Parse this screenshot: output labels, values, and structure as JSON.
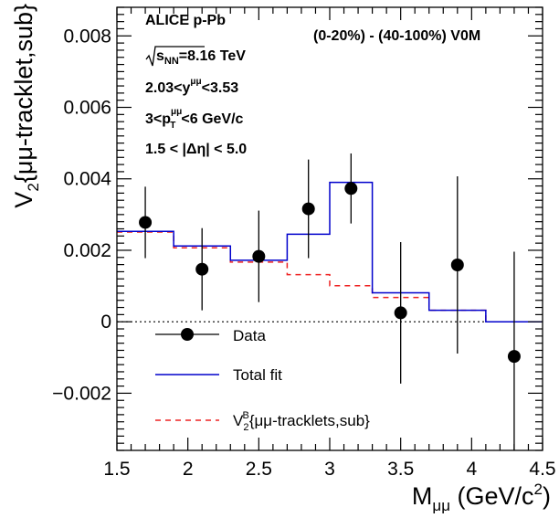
{
  "chart_data": {
    "type": "line",
    "xlabel": "M",
    "xlabel_sub": "μμ",
    "xlabel_unit": " (GeV/c",
    "xlabel_unit_sup": "2",
    "xlabel_unit_end": ")",
    "ylabel": "V",
    "ylabel_sub": "2",
    "ylabel_rest": "{μμ-tracklet,sub}",
    "xlim": [
      1.5,
      4.5
    ],
    "ylim": [
      -0.0036,
      0.0088
    ],
    "x_ticks": [
      1.5,
      2,
      2.5,
      3,
      3.5,
      4,
      4.5
    ],
    "x_tick_labels": [
      "1.5",
      "2",
      "2.5",
      "3",
      "3.5",
      "4",
      "4.5"
    ],
    "y_ticks": [
      -0.002,
      0,
      0.002,
      0.004,
      0.006,
      0.008
    ],
    "y_tick_labels": [
      "−0.002",
      "0",
      "0.002",
      "0.004",
      "0.006",
      "0.008"
    ],
    "bin_edges": [
      1.5,
      1.9,
      2.3,
      2.7,
      3.0,
      3.3,
      3.7,
      4.1,
      4.5
    ],
    "series": [
      {
        "name": "Data",
        "style": "points",
        "color": "#000000",
        "x": [
          1.7,
          2.1,
          2.5,
          2.85,
          3.15,
          3.5,
          3.9,
          4.3
        ],
        "y": [
          0.00278,
          0.00147,
          0.00183,
          0.00316,
          0.00373,
          0.00025,
          0.00159,
          -0.00097
        ],
        "err": [
          0.001,
          0.00115,
          0.00128,
          0.00138,
          0.00098,
          0.00198,
          0.00248,
          0.00293
        ]
      },
      {
        "name": "Total fit",
        "style": "step",
        "color": "#0000cc",
        "values": [
          0.00253,
          0.00212,
          0.00172,
          0.00245,
          0.0039,
          0.00081,
          0.00032,
          0.0
        ]
      },
      {
        "name": "V",
        "name_sub": "2",
        "name_sup": "B",
        "name_rest": "{μμ-tracklets,sub}",
        "style": "dashed-step",
        "color": "#ee2222",
        "values": [
          0.00251,
          0.00207,
          0.00167,
          0.00132,
          0.00101,
          0.00068,
          0.00032,
          0.0
        ]
      }
    ],
    "zero_line": {
      "y": 0,
      "style": "dotted"
    },
    "annotations": {
      "collab": "ALICE p-Pb",
      "energy_pre": "s",
      "energy_sub": "NN",
      "energy_post": "=8.16 TeV",
      "rapidity_pre": "2.03<y",
      "rapidity_sup": "μμ",
      "rapidity_post": "<3.53",
      "pt_pre": "3<p",
      "pt_sup": "μμ",
      "pt_sub": "T",
      "pt_post": "<6 GeV/c",
      "deta": "1.5 < |Δη| < 5.0",
      "centrality": "(0-20%) - (40-100%) V0M"
    },
    "legend_placement": "bottom-left",
    "grid": false
  }
}
